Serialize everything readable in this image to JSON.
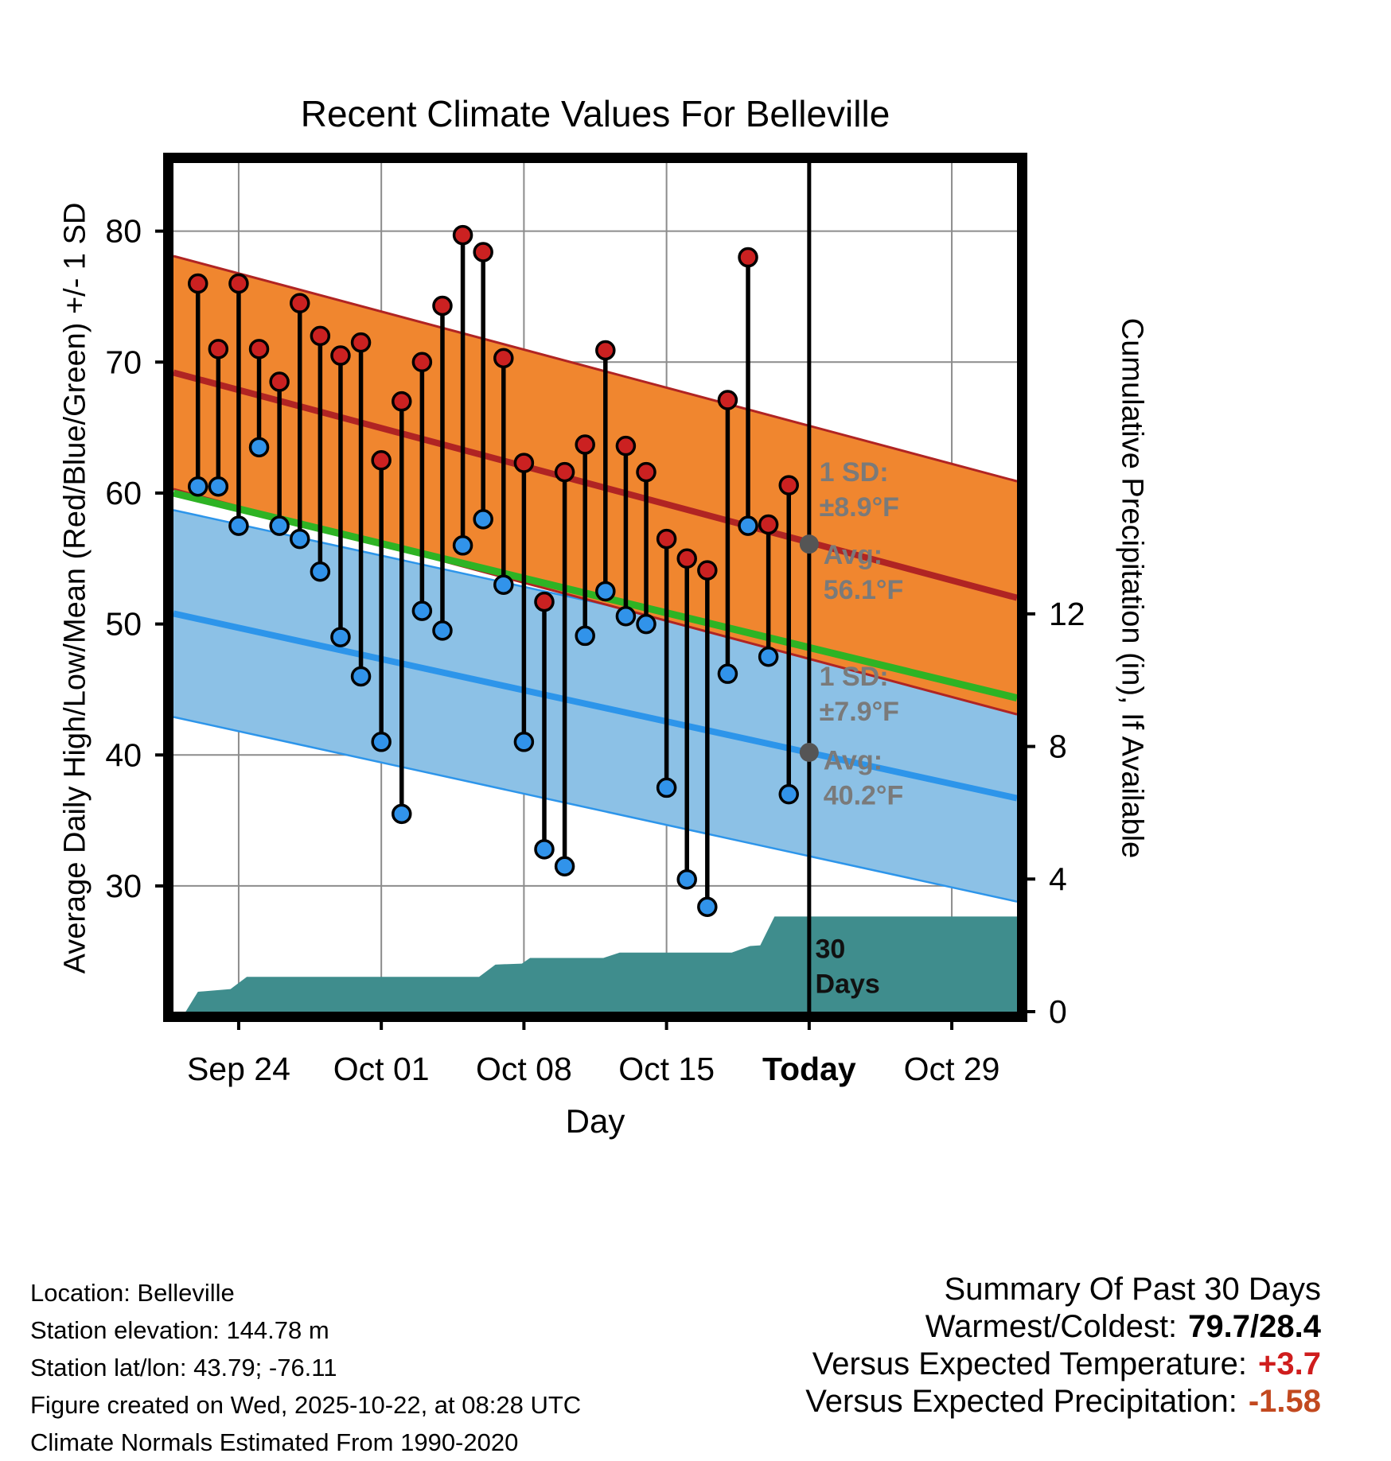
{
  "footer": {
    "info_lines": [
      "Location: Belleville",
      "Station elevation: 144.78 m",
      "Station lat/lon: 43.79; -76.11",
      "Figure created on Wed, 2025-10-22, at 08:28 UTC",
      "Climate Normals Estimated From 1990-2020"
    ],
    "summary": {
      "heading": "Summary Of Past 30 Days",
      "warmest_coldest_label": "Warmest/Coldest:",
      "warmest_coldest_value": "79.7/28.4",
      "vs_temp_label": "Versus Expected Temperature:",
      "vs_temp_value": "+3.7",
      "vs_precip_label": "Versus Expected Precipitation:",
      "vs_precip_value": "-1.58"
    }
  },
  "colors": {
    "vs_temp_value": "#cf1d1d",
    "vs_precip_value": "#c2491f"
  },
  "chart_data": {
    "type": "line",
    "title": "Recent Climate Values For Belleville",
    "xlabel": "Day",
    "ylabel_left": "Average Daily High/Low/Mean (Red/Blue/Green) +/- 1 SD",
    "ylabel_right": "Cumulative Precipitation (in), If Available",
    "x_domain": [
      -3.2,
      38.2
    ],
    "y_temp_range": [
      20.4,
      85.2
    ],
    "y_precip_range": [
      0,
      25.6
    ],
    "grid": true,
    "xticks": [
      {
        "day": 0,
        "label": "Sep 24",
        "bold": false
      },
      {
        "day": 7,
        "label": "Oct 01",
        "bold": false
      },
      {
        "day": 14,
        "label": "Oct 08",
        "bold": false
      },
      {
        "day": 21,
        "label": "Oct 15",
        "bold": false
      },
      {
        "day": 28,
        "label": "Today",
        "bold": true
      },
      {
        "day": 35,
        "label": "Oct 29",
        "bold": false
      }
    ],
    "yticks_left": [
      30,
      40,
      50,
      60,
      70,
      80
    ],
    "yticks_right": [
      0,
      4,
      8,
      12
    ],
    "today_day": 28,
    "normals": {
      "high": {
        "mean_start": 69.2,
        "mean_end": 52.0,
        "sd": 8.9,
        "today_mean": 56.1
      },
      "low": {
        "mean_start": 50.8,
        "mean_end": 36.7,
        "sd": 7.9,
        "today_mean": 40.2
      },
      "mean": {
        "start": 60.0,
        "end": 44.35
      }
    },
    "series_daily": [
      {
        "day": -2,
        "date": "Sep 22",
        "high": 76.0,
        "low": 60.5
      },
      {
        "day": -1,
        "date": "Sep 23",
        "high": 71.0,
        "low": 60.5
      },
      {
        "day": 0,
        "date": "Sep 24",
        "high": 76.0,
        "low": 57.5
      },
      {
        "day": 1,
        "date": "Sep 25",
        "high": 71.0,
        "low": 63.5
      },
      {
        "day": 2,
        "date": "Sep 26",
        "high": 68.5,
        "low": 57.5
      },
      {
        "day": 3,
        "date": "Sep 27",
        "high": 74.5,
        "low": 56.5
      },
      {
        "day": 4,
        "date": "Sep 28",
        "high": 72.0,
        "low": 54.0
      },
      {
        "day": 5,
        "date": "Sep 29",
        "high": 70.5,
        "low": 49.0
      },
      {
        "day": 6,
        "date": "Sep 30",
        "high": 71.5,
        "low": 46.0
      },
      {
        "day": 7,
        "date": "Oct 01",
        "high": 62.5,
        "low": 41.0
      },
      {
        "day": 8,
        "date": "Oct 02",
        "high": 67.0,
        "low": 35.5
      },
      {
        "day": 9,
        "date": "Oct 03",
        "high": 70.0,
        "low": 51.0
      },
      {
        "day": 10,
        "date": "Oct 04",
        "high": 74.3,
        "low": 49.5
      },
      {
        "day": 11,
        "date": "Oct 05",
        "high": 79.7,
        "low": 56.0
      },
      {
        "day": 12,
        "date": "Oct 06",
        "high": 78.4,
        "low": 58.0
      },
      {
        "day": 13,
        "date": "Oct 07",
        "high": 70.3,
        "low": 53.0
      },
      {
        "day": 14,
        "date": "Oct 08",
        "high": 62.3,
        "low": 41.0
      },
      {
        "day": 15,
        "date": "Oct 09",
        "high": 51.7,
        "low": 32.8
      },
      {
        "day": 16,
        "date": "Oct 10",
        "high": 61.6,
        "low": 31.5
      },
      {
        "day": 17,
        "date": "Oct 11",
        "high": 63.7,
        "low": 49.1
      },
      {
        "day": 18,
        "date": "Oct 12",
        "high": 70.9,
        "low": 52.5
      },
      {
        "day": 19,
        "date": "Oct 13",
        "high": 63.6,
        "low": 50.6
      },
      {
        "day": 20,
        "date": "Oct 14",
        "high": 61.6,
        "low": 50.0
      },
      {
        "day": 21,
        "date": "Oct 15",
        "high": 56.5,
        "low": 37.5
      },
      {
        "day": 22,
        "date": "Oct 16",
        "high": 55.0,
        "low": 30.5
      },
      {
        "day": 23,
        "date": "Oct 17",
        "high": 54.1,
        "low": 28.4
      },
      {
        "day": 24,
        "date": "Oct 18",
        "high": 67.1,
        "low": 46.2
      },
      {
        "day": 25,
        "date": "Oct 19",
        "high": 78.0,
        "low": 57.5
      },
      {
        "day": 26,
        "date": "Oct 20",
        "high": 57.6,
        "low": 47.5
      },
      {
        "day": 27,
        "date": "Oct 21",
        "high": 60.6,
        "low": 37.0
      }
    ],
    "precip_cumulative": [
      {
        "day": -3.2,
        "in": 0.0
      },
      {
        "day": -2.6,
        "in": 0.0
      },
      {
        "day": -2.0,
        "in": 0.6
      },
      {
        "day": -0.4,
        "in": 0.68
      },
      {
        "day": 0.4,
        "in": 1.05
      },
      {
        "day": 11.8,
        "in": 1.05
      },
      {
        "day": 12.6,
        "in": 1.42
      },
      {
        "day": 13.9,
        "in": 1.45
      },
      {
        "day": 14.3,
        "in": 1.62
      },
      {
        "day": 17.9,
        "in": 1.62
      },
      {
        "day": 18.7,
        "in": 1.78
      },
      {
        "day": 24.2,
        "in": 1.78
      },
      {
        "day": 25.1,
        "in": 1.98
      },
      {
        "day": 25.6,
        "in": 2.0
      },
      {
        "day": 26.3,
        "in": 2.87
      },
      {
        "day": 38.2,
        "in": 2.87
      }
    ],
    "annotations": [
      {
        "lines": [
          "1 SD:",
          "±8.9°F"
        ],
        "day": 28.5,
        "temp": 60.9,
        "color": "#7a7a7a"
      },
      {
        "lines": [
          "Avg:",
          "56.1°F"
        ],
        "day": 28.7,
        "temp": 54.6,
        "color": "#7a7a7a"
      },
      {
        "lines": [
          "1 SD:",
          "±7.9°F"
        ],
        "day": 28.5,
        "temp": 45.3,
        "color": "#7a7a7a"
      },
      {
        "lines": [
          "Avg:",
          "40.2°F"
        ],
        "day": 28.7,
        "temp": 38.9,
        "color": "#7a7a7a"
      },
      {
        "lines": [
          "30",
          "Days"
        ],
        "day": 28.3,
        "temp": 24.5,
        "color": "#111111"
      }
    ],
    "colors": {
      "high_band": "#f0862f",
      "high_line": "#b02423",
      "low_band": "#8cc1e6",
      "low_line": "#2d95ea",
      "mean_line": "#2eb324",
      "precip_fill": "#3f8d8d",
      "point_high": "#cb2121",
      "point_low": "#3193ea",
      "stem": "#000000",
      "grid": "#8c8c8c",
      "today_line": "#000000",
      "today_dot": "#555555"
    }
  }
}
